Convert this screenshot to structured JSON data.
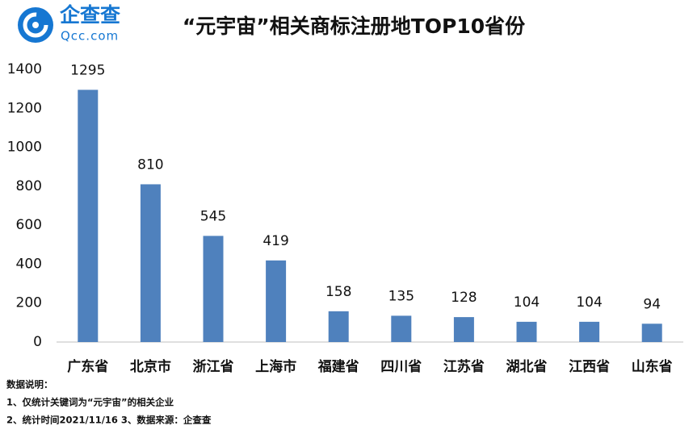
{
  "logo": {
    "name": "企查查",
    "url": "Qcc.com"
  },
  "chart_data": {
    "type": "bar",
    "title": "“元宇宙”相关商标注册地TOP10省份",
    "categories": [
      "广东省",
      "北京市",
      "浙江省",
      "上海市",
      "福建省",
      "四川省",
      "江苏省",
      "湖北省",
      "江西省",
      "山东省"
    ],
    "values": [
      1295,
      810,
      545,
      419,
      158,
      135,
      128,
      104,
      104,
      94
    ],
    "color": "#4f81bd",
    "ylim": [
      0,
      1400
    ],
    "yticks": [
      0,
      200,
      400,
      600,
      800,
      1000,
      1200,
      1400
    ],
    "grid": false
  },
  "notes": {
    "title": "数据说明：",
    "lines": [
      "1、仅统计关键词为“元宇宙”的相关企业",
      "2、统计时间2021/11/16  3、数据来源：企查查"
    ]
  }
}
